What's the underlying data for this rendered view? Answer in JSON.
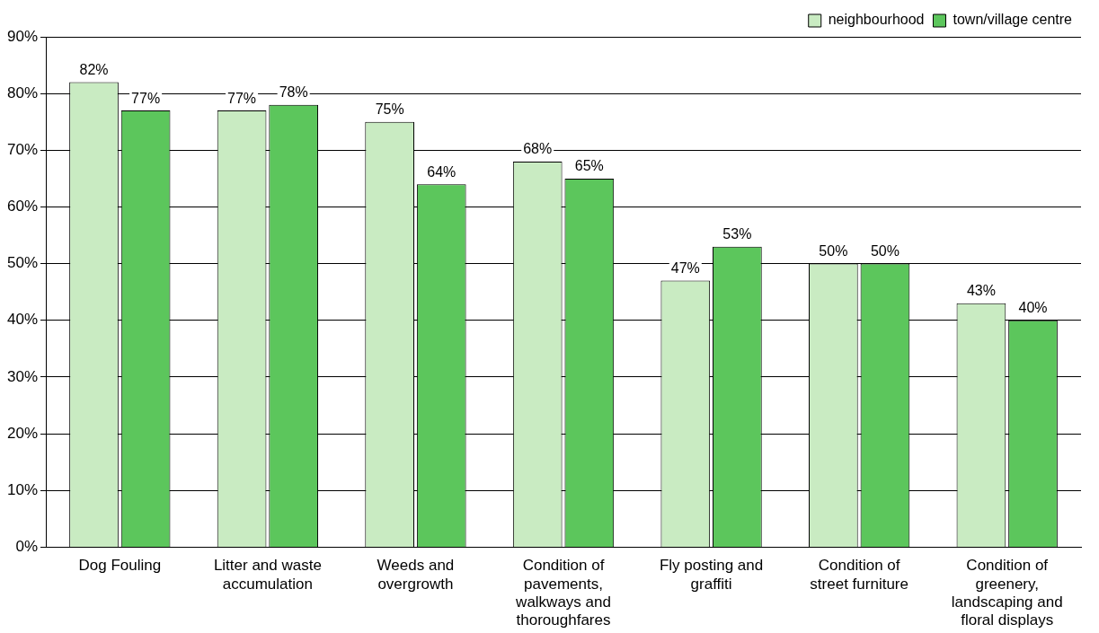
{
  "chart_data": {
    "type": "bar",
    "categories": [
      "Dog Fouling",
      "Litter and waste accumulation",
      "Weeds and overgrowth",
      "Condition of pavements, walkways and thoroughfares",
      "Fly posting and graffiti",
      "Condition of street furniture",
      "Condition of greenery, landscaping and floral displays"
    ],
    "series": [
      {
        "name": "neighbourhood",
        "color": "#c9ebc2",
        "values": [
          82,
          77,
          75,
          68,
          47,
          50,
          43
        ],
        "value_labels": [
          "82%",
          "77%",
          "75%",
          "68%",
          "47%",
          "50%",
          "43%"
        ]
      },
      {
        "name": "town/village centre",
        "color": "#5cc65c",
        "values": [
          77,
          78,
          64,
          65,
          53,
          50,
          40
        ],
        "value_labels": [
          "77%",
          "78%",
          "64%",
          "65%",
          "53%",
          "50%",
          "40%"
        ]
      }
    ],
    "ylim": [
      0,
      90
    ],
    "yticks": [
      {
        "value": 0,
        "label": "0%"
      },
      {
        "value": 10,
        "label": "10%"
      },
      {
        "value": 20,
        "label": "20%"
      },
      {
        "value": 30,
        "label": "30%"
      },
      {
        "value": 40,
        "label": "40%"
      },
      {
        "value": 50,
        "label": "50%"
      },
      {
        "value": 60,
        "label": "60%"
      },
      {
        "value": 70,
        "label": "70%"
      },
      {
        "value": 80,
        "label": "80%"
      },
      {
        "value": 90,
        "label": "90%"
      }
    ],
    "grid": "y",
    "legend": "top right"
  }
}
